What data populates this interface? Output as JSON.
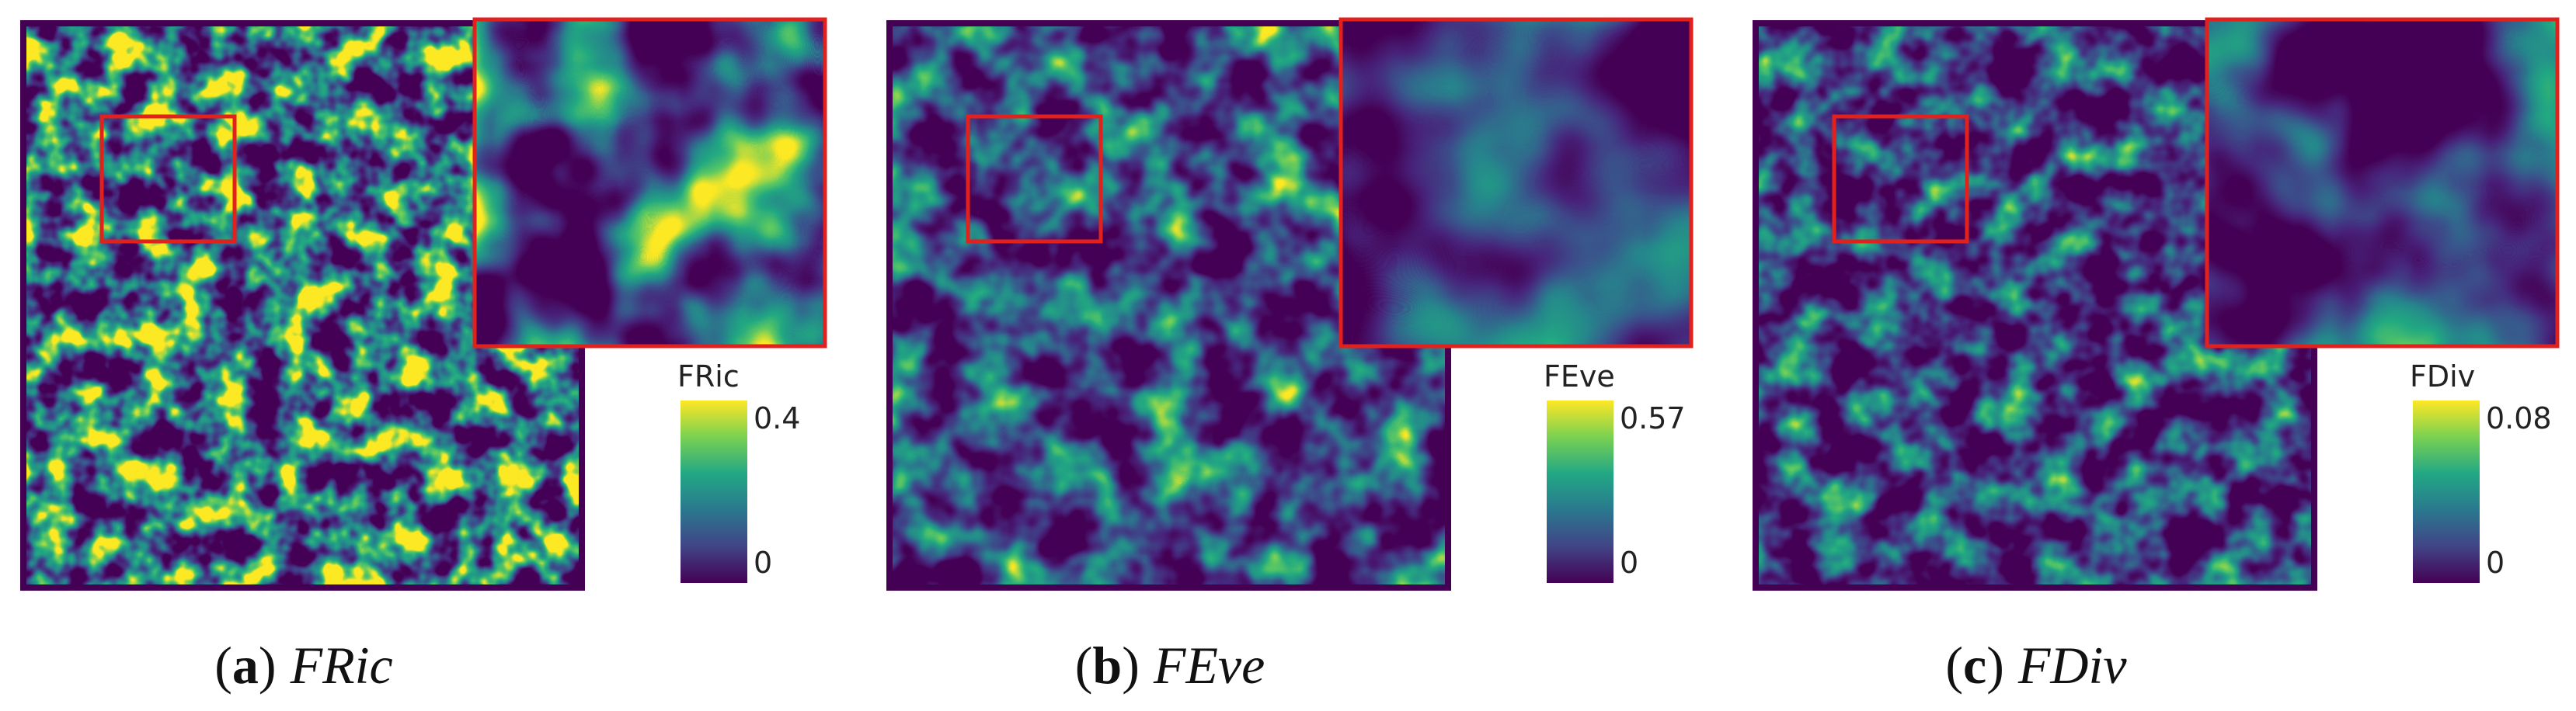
{
  "figure": {
    "panels": [
      {
        "label": "(a)",
        "name": "FRic",
        "colorbar_title": "FRic",
        "ticks": [
          0.4,
          0
        ]
      },
      {
        "label": "(b)",
        "name": "FEve",
        "colorbar_title": "FEve",
        "ticks": [
          0.57,
          0
        ]
      },
      {
        "label": "(c)",
        "name": "FDiv",
        "colorbar_title": "FDiv",
        "ticks": [
          0.08,
          0
        ]
      }
    ]
  }
}
